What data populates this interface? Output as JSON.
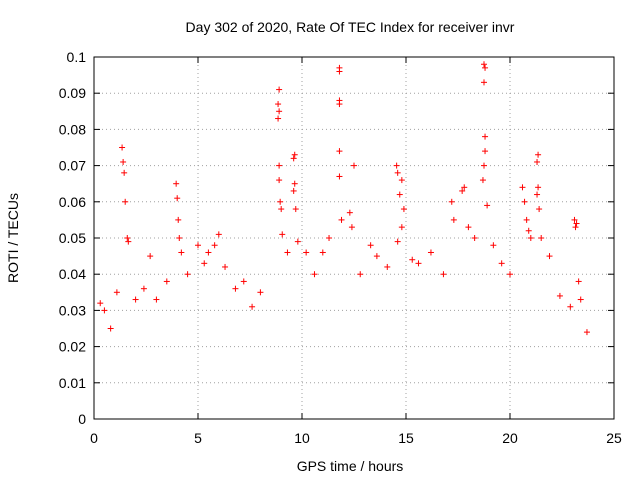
{
  "chart_data": {
    "type": "scatter",
    "title": "Day 302 of 2020, Rate Of TEC Index for receiver invr",
    "xlabel": "GPS time / hours",
    "ylabel": "ROTI / TECUs",
    "xlim": [
      0,
      25
    ],
    "ylim": [
      0,
      0.1
    ],
    "xticks": [
      "0",
      "5",
      "10",
      "15",
      "20",
      "25"
    ],
    "yticks": [
      "0",
      "0.01",
      "0.02",
      "0.03",
      "0.04",
      "0.05",
      "0.06",
      "0.07",
      "0.08",
      "0.09",
      "0.1"
    ],
    "grid": true,
    "marker": "plus",
    "color": "#ff0000",
    "series": [
      {
        "points": [
          [
            0.3,
            0.032
          ],
          [
            0.5,
            0.03
          ],
          [
            0.8,
            0.025
          ],
          [
            1.1,
            0.035
          ],
          [
            1.35,
            0.075
          ],
          [
            1.4,
            0.071
          ],
          [
            1.45,
            0.068
          ],
          [
            1.5,
            0.06
          ],
          [
            1.6,
            0.05
          ],
          [
            1.65,
            0.049
          ],
          [
            2.0,
            0.033
          ],
          [
            2.4,
            0.036
          ],
          [
            2.7,
            0.045
          ],
          [
            3.0,
            0.033
          ],
          [
            3.5,
            0.038
          ],
          [
            3.95,
            0.065
          ],
          [
            4.0,
            0.061
          ],
          [
            4.05,
            0.055
          ],
          [
            4.1,
            0.05
          ],
          [
            4.2,
            0.046
          ],
          [
            4.5,
            0.04
          ],
          [
            5.0,
            0.048
          ],
          [
            5.3,
            0.043
          ],
          [
            5.5,
            0.046
          ],
          [
            5.8,
            0.048
          ],
          [
            6.0,
            0.051
          ],
          [
            6.3,
            0.042
          ],
          [
            6.8,
            0.036
          ],
          [
            7.2,
            0.038
          ],
          [
            7.6,
            0.031
          ],
          [
            8.0,
            0.035
          ],
          [
            8.9,
            0.091
          ],
          [
            8.85,
            0.087
          ],
          [
            8.9,
            0.085
          ],
          [
            8.85,
            0.083
          ],
          [
            8.9,
            0.07
          ],
          [
            8.9,
            0.066
          ],
          [
            8.95,
            0.06
          ],
          [
            9.0,
            0.058
          ],
          [
            9.05,
            0.051
          ],
          [
            9.3,
            0.046
          ],
          [
            9.65,
            0.073
          ],
          [
            9.6,
            0.072
          ],
          [
            9.65,
            0.065
          ],
          [
            9.6,
            0.063
          ],
          [
            9.7,
            0.058
          ],
          [
            9.8,
            0.049
          ],
          [
            10.2,
            0.046
          ],
          [
            10.6,
            0.04
          ],
          [
            11.0,
            0.046
          ],
          [
            11.3,
            0.05
          ],
          [
            11.8,
            0.097
          ],
          [
            11.8,
            0.096
          ],
          [
            11.8,
            0.088
          ],
          [
            11.8,
            0.087
          ],
          [
            11.8,
            0.074
          ],
          [
            11.8,
            0.067
          ],
          [
            11.9,
            0.055
          ],
          [
            12.3,
            0.057
          ],
          [
            12.4,
            0.053
          ],
          [
            12.5,
            0.07
          ],
          [
            12.8,
            0.04
          ],
          [
            13.3,
            0.048
          ],
          [
            13.6,
            0.045
          ],
          [
            14.1,
            0.042
          ],
          [
            14.55,
            0.07
          ],
          [
            14.6,
            0.068
          ],
          [
            14.7,
            0.062
          ],
          [
            14.8,
            0.066
          ],
          [
            14.9,
            0.058
          ],
          [
            14.8,
            0.053
          ],
          [
            14.6,
            0.049
          ],
          [
            15.3,
            0.044
          ],
          [
            15.6,
            0.043
          ],
          [
            16.2,
            0.046
          ],
          [
            16.8,
            0.04
          ],
          [
            17.2,
            0.06
          ],
          [
            17.3,
            0.055
          ],
          [
            17.7,
            0.063
          ],
          [
            17.8,
            0.064
          ],
          [
            18.0,
            0.053
          ],
          [
            18.3,
            0.05
          ],
          [
            18.75,
            0.098
          ],
          [
            18.8,
            0.097
          ],
          [
            18.75,
            0.093
          ],
          [
            18.8,
            0.078
          ],
          [
            18.8,
            0.074
          ],
          [
            18.75,
            0.07
          ],
          [
            18.7,
            0.066
          ],
          [
            18.9,
            0.059
          ],
          [
            19.2,
            0.048
          ],
          [
            19.6,
            0.043
          ],
          [
            20.0,
            0.04
          ],
          [
            20.6,
            0.064
          ],
          [
            20.7,
            0.06
          ],
          [
            20.8,
            0.055
          ],
          [
            20.9,
            0.052
          ],
          [
            21.0,
            0.05
          ],
          [
            21.35,
            0.073
          ],
          [
            21.3,
            0.071
          ],
          [
            21.35,
            0.064
          ],
          [
            21.3,
            0.062
          ],
          [
            21.4,
            0.058
          ],
          [
            21.5,
            0.05
          ],
          [
            21.9,
            0.045
          ],
          [
            22.4,
            0.034
          ],
          [
            22.9,
            0.031
          ],
          [
            23.1,
            0.055
          ],
          [
            23.2,
            0.054
          ],
          [
            23.15,
            0.053
          ],
          [
            23.3,
            0.038
          ],
          [
            23.4,
            0.033
          ],
          [
            23.7,
            0.024
          ]
        ]
      }
    ]
  }
}
